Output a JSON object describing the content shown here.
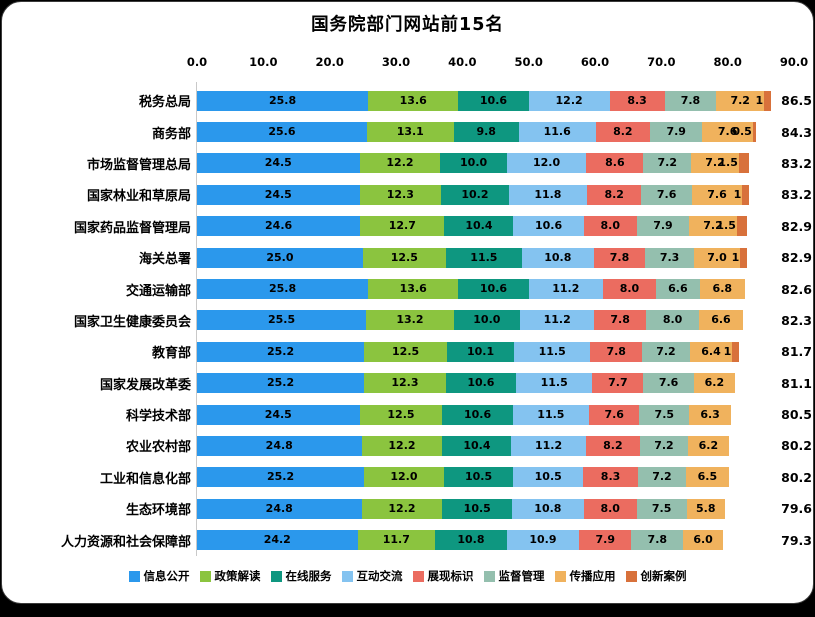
{
  "chart_data": {
    "type": "bar",
    "orientation": "horizontal",
    "stacked": true,
    "title": "国务院部门网站前15名",
    "legend_position": "bottom",
    "grid": false,
    "x_axis": {
      "min": 0,
      "max": 90,
      "ticks": [
        {
          "value": 0,
          "label": "0.0"
        },
        {
          "value": 10,
          "label": "10.0"
        },
        {
          "value": 20,
          "label": "20.0"
        },
        {
          "value": 30,
          "label": "30.0"
        },
        {
          "value": 40,
          "label": "40.0"
        },
        {
          "value": 50,
          "label": "50.0"
        },
        {
          "value": 60,
          "label": "60.0"
        },
        {
          "value": 70,
          "label": "70.0"
        },
        {
          "value": 80,
          "label": "80.0"
        },
        {
          "value": 90,
          "label": "90.0"
        }
      ]
    },
    "series_names": [
      "信息公开",
      "政策解读",
      "在线服务",
      "互动交流",
      "展现标识",
      "监督管理",
      "传播应用",
      "创新案例"
    ],
    "series_colors": [
      "#2B98EC",
      "#8BC43F",
      "#0E9780",
      "#84C3F0",
      "#EB6C60",
      "#94BFAE",
      "#F0B25D",
      "#D8713B"
    ],
    "rows": [
      {
        "category": "税务总局",
        "values": [
          25.8,
          13.6,
          10.6,
          12.2,
          8.3,
          7.8,
          7.2,
          1.0
        ],
        "labels": [
          "25.8",
          "13.6",
          "10.6",
          "12.2",
          "8.3",
          "7.8",
          "7.2",
          "1"
        ],
        "total": "86.5"
      },
      {
        "category": "商务部",
        "values": [
          25.6,
          13.1,
          9.8,
          11.6,
          8.2,
          7.9,
          7.6,
          0.5
        ],
        "labels": [
          "25.6",
          "13.1",
          "9.8",
          "11.6",
          "8.2",
          "7.9",
          "7.6",
          "0.5"
        ],
        "total": "84.3"
      },
      {
        "category": "市场监督管理总局",
        "values": [
          24.5,
          12.2,
          10.0,
          12.0,
          8.6,
          7.2,
          7.2,
          1.5
        ],
        "labels": [
          "24.5",
          "12.2",
          "10.0",
          "12.0",
          "8.6",
          "7.2",
          "7.2",
          "1.5"
        ],
        "total": "83.2"
      },
      {
        "category": "国家林业和草原局",
        "values": [
          24.5,
          12.3,
          10.2,
          11.8,
          8.2,
          7.6,
          7.6,
          1.0
        ],
        "labels": [
          "24.5",
          "12.3",
          "10.2",
          "11.8",
          "8.2",
          "7.6",
          "7.6",
          "1"
        ],
        "total": "83.2"
      },
      {
        "category": "国家药品监督管理局",
        "values": [
          24.6,
          12.7,
          10.4,
          10.6,
          8.0,
          7.9,
          7.2,
          1.5
        ],
        "labels": [
          "24.6",
          "12.7",
          "10.4",
          "10.6",
          "8.0",
          "7.9",
          "7.2",
          "1.5"
        ],
        "total": "82.9"
      },
      {
        "category": "海关总署",
        "values": [
          25.0,
          12.5,
          11.5,
          10.8,
          7.8,
          7.3,
          7.0,
          1.0
        ],
        "labels": [
          "25.0",
          "12.5",
          "11.5",
          "10.8",
          "7.8",
          "7.3",
          "7.0",
          "1"
        ],
        "total": "82.9"
      },
      {
        "category": "交通运输部",
        "values": [
          25.8,
          13.6,
          10.6,
          11.2,
          8.0,
          6.6,
          6.8
        ],
        "labels": [
          "25.8",
          "13.6",
          "10.6",
          "11.2",
          "8.0",
          "6.6",
          "6.8"
        ],
        "total": "82.6"
      },
      {
        "category": "国家卫生健康委员会",
        "values": [
          25.5,
          13.2,
          10.0,
          11.2,
          7.8,
          8.0,
          6.6
        ],
        "labels": [
          "25.5",
          "13.2",
          "10.0",
          "11.2",
          "7.8",
          "8.0",
          "6.6"
        ],
        "total": "82.3"
      },
      {
        "category": "教育部",
        "values": [
          25.2,
          12.5,
          10.1,
          11.5,
          7.8,
          7.2,
          6.4,
          1.0
        ],
        "labels": [
          "25.2",
          "12.5",
          "10.1",
          "11.5",
          "7.8",
          "7.2",
          "6.4",
          "1"
        ],
        "total": "81.7"
      },
      {
        "category": "国家发展改革委",
        "values": [
          25.2,
          12.3,
          10.6,
          11.5,
          7.7,
          7.6,
          6.2
        ],
        "labels": [
          "25.2",
          "12.3",
          "10.6",
          "11.5",
          "7.7",
          "7.6",
          "6.2"
        ],
        "total": "81.1"
      },
      {
        "category": "科学技术部",
        "values": [
          24.5,
          12.5,
          10.6,
          11.5,
          7.6,
          7.5,
          6.3
        ],
        "labels": [
          "24.5",
          "12.5",
          "10.6",
          "11.5",
          "7.6",
          "7.5",
          "6.3"
        ],
        "total": "80.5"
      },
      {
        "category": "农业农村部",
        "values": [
          24.8,
          12.2,
          10.4,
          11.2,
          8.2,
          7.2,
          6.2
        ],
        "labels": [
          "24.8",
          "12.2",
          "10.4",
          "11.2",
          "8.2",
          "7.2",
          "6.2"
        ],
        "total": "80.2"
      },
      {
        "category": "工业和信息化部",
        "values": [
          25.2,
          12.0,
          10.5,
          10.5,
          8.3,
          7.2,
          6.5
        ],
        "labels": [
          "25.2",
          "12.0",
          "10.5",
          "10.5",
          "8.3",
          "7.2",
          "6.5"
        ],
        "total": "80.2"
      },
      {
        "category": "生态环境部",
        "values": [
          24.8,
          12.2,
          10.5,
          10.8,
          8.0,
          7.5,
          5.8
        ],
        "labels": [
          "24.8",
          "12.2",
          "10.5",
          "10.8",
          "8.0",
          "7.5",
          "5.8"
        ],
        "total": "79.6"
      },
      {
        "category": "人力资源和社会保障部",
        "values": [
          24.2,
          11.7,
          10.8,
          10.9,
          7.9,
          7.8,
          6.0
        ],
        "labels": [
          "24.2",
          "11.7",
          "10.8",
          "10.9",
          "7.9",
          "7.8",
          "6.0"
        ],
        "total": "79.3"
      }
    ]
  }
}
